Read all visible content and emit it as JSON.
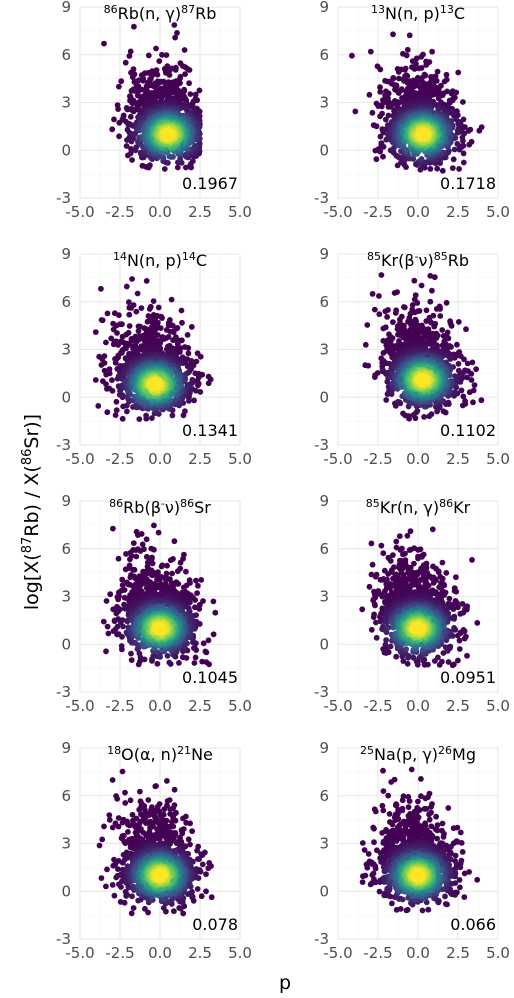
{
  "chart_data": {
    "type": "scatter",
    "layout": "4 rows x 2 columns (facets)",
    "xlabel": "p",
    "ylabel": {
      "prefix": "log[X(",
      "sup1": "87",
      "mid": "Rb) / X(",
      "sup2": "86",
      "suffix": "Sr)]"
    },
    "xlim": [
      -5,
      5
    ],
    "ylim": [
      -3,
      9
    ],
    "x_ticks": [
      "-5.0",
      "-2.5",
      "0.0",
      "2.5",
      "5.0"
    ],
    "x_tick_values": [
      -5,
      -2.5,
      0,
      2.5,
      5
    ],
    "y_ticks": [
      "-3",
      "0",
      "3",
      "6",
      "9"
    ],
    "y_tick_values": [
      -3,
      0,
      3,
      6,
      9
    ],
    "grid": true,
    "colormap": [
      "#440154",
      "#3b528b",
      "#21918c",
      "#5ec962",
      "#fde725"
    ],
    "panels": [
      {
        "title": [
          {
            "sup": "86"
          },
          {
            "t": "Rb(n, γ)"
          },
          {
            "sup": "87"
          },
          {
            "t": "Rb"
          }
        ],
        "value": "0.1967",
        "density_center": [
          0.5,
          1.0
        ],
        "point_extent": {
          "x": [
            -4.5,
            2.5
          ],
          "y": [
            -1.2,
            8.0
          ]
        }
      },
      {
        "title": [
          {
            "sup": "13"
          },
          {
            "t": "N(n, p)"
          },
          {
            "sup": "13"
          },
          {
            "t": "C"
          }
        ],
        "value": "0.1718",
        "density_center": [
          0.3,
          1.0
        ],
        "point_extent": {
          "x": [
            -4.3,
            4.5
          ],
          "y": [
            -1.3,
            7.5
          ]
        }
      },
      {
        "title": [
          {
            "sup": "14"
          },
          {
            "t": "N(n, p)"
          },
          {
            "sup": "14"
          },
          {
            "t": "C"
          }
        ],
        "value": "0.1341",
        "density_center": [
          -0.3,
          0.8
        ],
        "point_extent": {
          "x": [
            -4.2,
            3.8
          ],
          "y": [
            -1.4,
            8.0
          ]
        }
      },
      {
        "title": [
          {
            "sup": "85"
          },
          {
            "t": "Kr(β"
          },
          {
            "sup": "-"
          },
          {
            "t": "ν)"
          },
          {
            "sup": "85"
          },
          {
            "t": "Rb"
          }
        ],
        "value": "0.1102",
        "density_center": [
          0.3,
          1.1
        ],
        "point_extent": {
          "x": [
            -4.5,
            4.5
          ],
          "y": [
            -1.4,
            7.8
          ]
        }
      },
      {
        "title": [
          {
            "sup": "86"
          },
          {
            "t": "Rb(β"
          },
          {
            "sup": "-"
          },
          {
            "t": "ν)"
          },
          {
            "sup": "86"
          },
          {
            "t": "Sr"
          }
        ],
        "value": "0.1045",
        "density_center": [
          0.0,
          1.0
        ],
        "point_extent": {
          "x": [
            -4.5,
            4.5
          ],
          "y": [
            -1.3,
            8.2
          ]
        }
      },
      {
        "title": [
          {
            "sup": "85"
          },
          {
            "t": "Kr(n, γ)"
          },
          {
            "sup": "86"
          },
          {
            "t": "Kr"
          }
        ],
        "value": "0.0951",
        "density_center": [
          0.0,
          1.0
        ],
        "point_extent": {
          "x": [
            -4.3,
            4.7
          ],
          "y": [
            -1.4,
            7.8
          ]
        }
      },
      {
        "title": [
          {
            "sup": "18"
          },
          {
            "t": "O(α, n)"
          },
          {
            "sup": "21"
          },
          {
            "t": "Ne"
          }
        ],
        "value": "0.078",
        "density_center": [
          0.0,
          1.0
        ],
        "point_extent": {
          "x": [
            -3.8,
            4.5
          ],
          "y": [
            -1.4,
            7.8
          ]
        }
      },
      {
        "title": [
          {
            "sup": "25"
          },
          {
            "t": "Na(p, γ)"
          },
          {
            "sup": "26"
          },
          {
            "t": "Mg"
          }
        ],
        "value": "0.066",
        "density_center": [
          0.0,
          1.0
        ],
        "point_extent": {
          "x": [
            -4.0,
            4.5
          ],
          "y": [
            -1.4,
            8.2
          ]
        }
      }
    ]
  }
}
